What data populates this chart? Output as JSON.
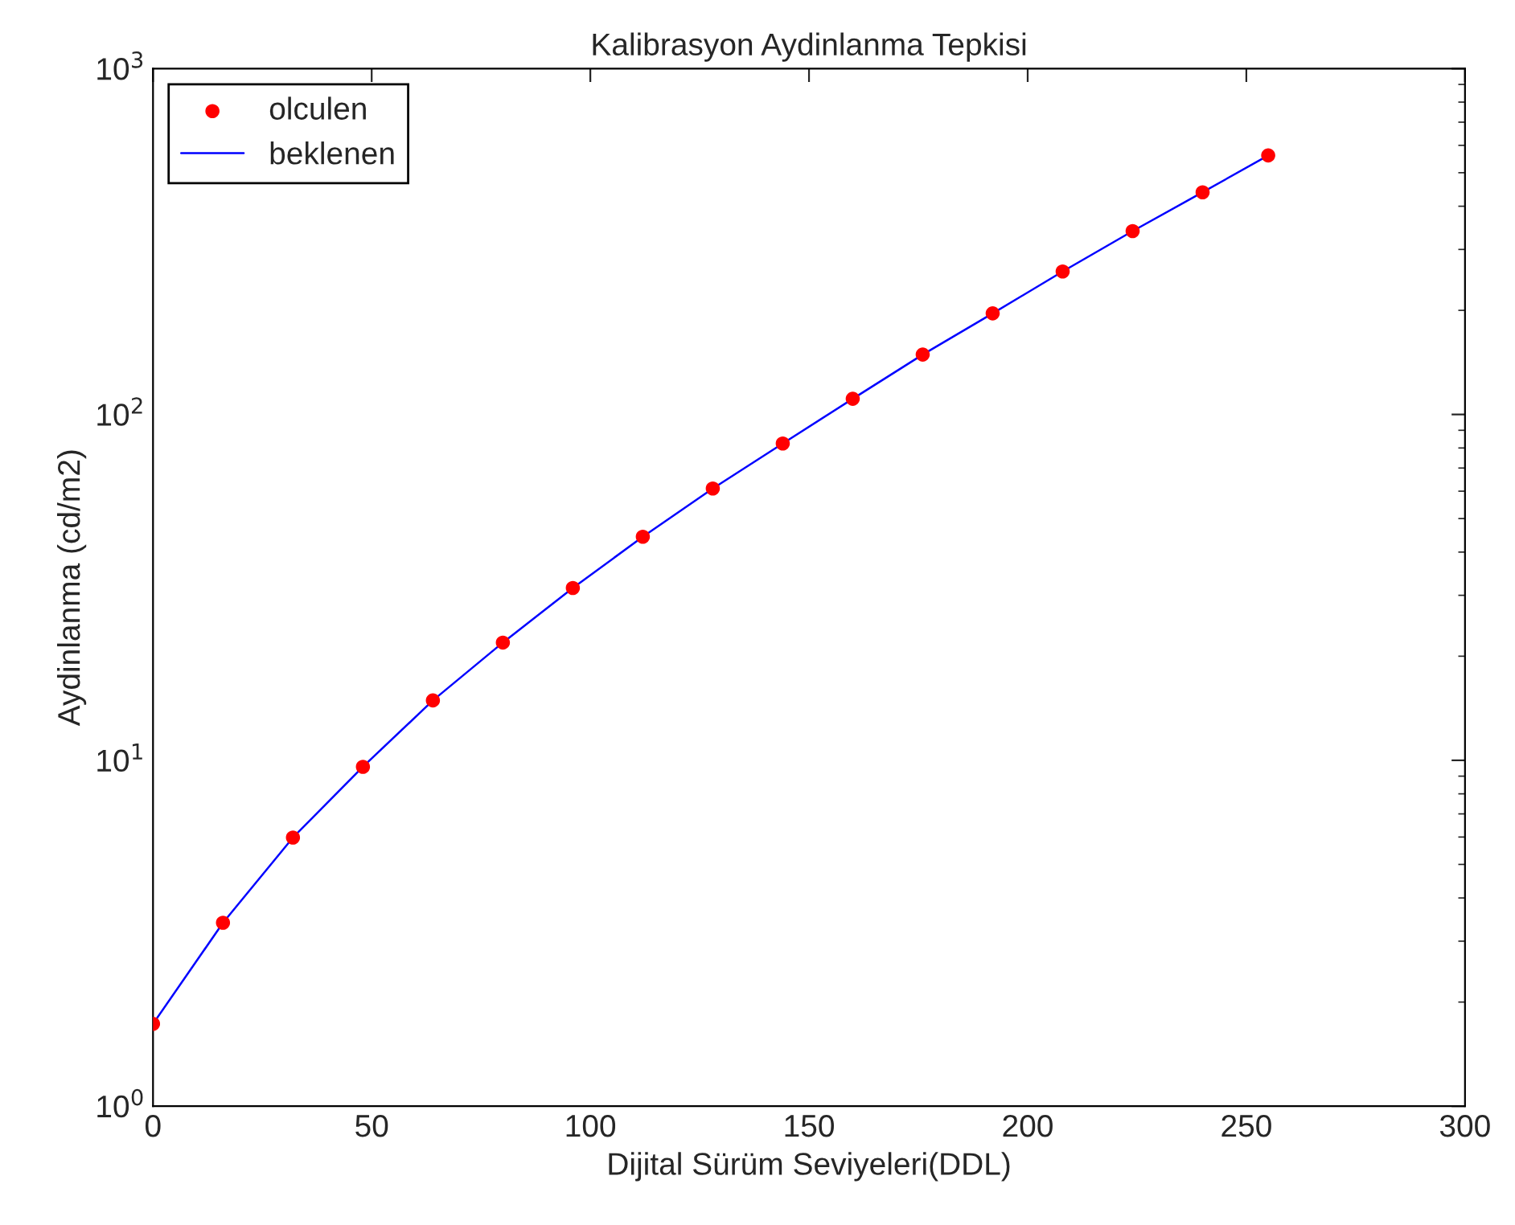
{
  "chart_data": {
    "type": "scatter",
    "title": "Kalibrasyon Aydinlanma Tepkisi",
    "xlabel": "Dijital Sürüm Seviyeleri(DDL)",
    "ylabel": "Aydinlanma (cd/m2)",
    "x": [
      0,
      16,
      32,
      48,
      64,
      80,
      96,
      112,
      128,
      144,
      160,
      176,
      192,
      208,
      224,
      240,
      255
    ],
    "series": [
      {
        "name": "olculen",
        "type": "scatter",
        "color": "#ff0000",
        "marker": "circle",
        "values": [
          1.73,
          3.39,
          5.98,
          9.58,
          14.9,
          21.9,
          31.5,
          44.3,
          61.1,
          82.4,
          111,
          149,
          196,
          259,
          339,
          439,
          561
        ]
      },
      {
        "name": "beklenen",
        "type": "line",
        "color": "#0000ff",
        "line_style": "solid",
        "values": [
          1.73,
          3.39,
          5.98,
          9.58,
          14.9,
          21.9,
          31.5,
          44.3,
          61.1,
          82.4,
          111,
          149,
          196,
          259,
          339,
          439,
          561
        ]
      }
    ],
    "log": "y",
    "xlim": [
      0,
      300
    ],
    "xticks": [
      0,
      50,
      100,
      150,
      200,
      250,
      300
    ],
    "ylim": [
      1,
      1000
    ],
    "yticks": [
      {
        "value": 1,
        "label": "10$^{0}$"
      },
      {
        "value": 10,
        "label": "10$^{1}$"
      },
      {
        "value": 100,
        "label": "10$^{2}$"
      },
      {
        "value": 1000,
        "label": "10$^{3}$"
      }
    ],
    "grid": false,
    "legend": "top left"
  }
}
